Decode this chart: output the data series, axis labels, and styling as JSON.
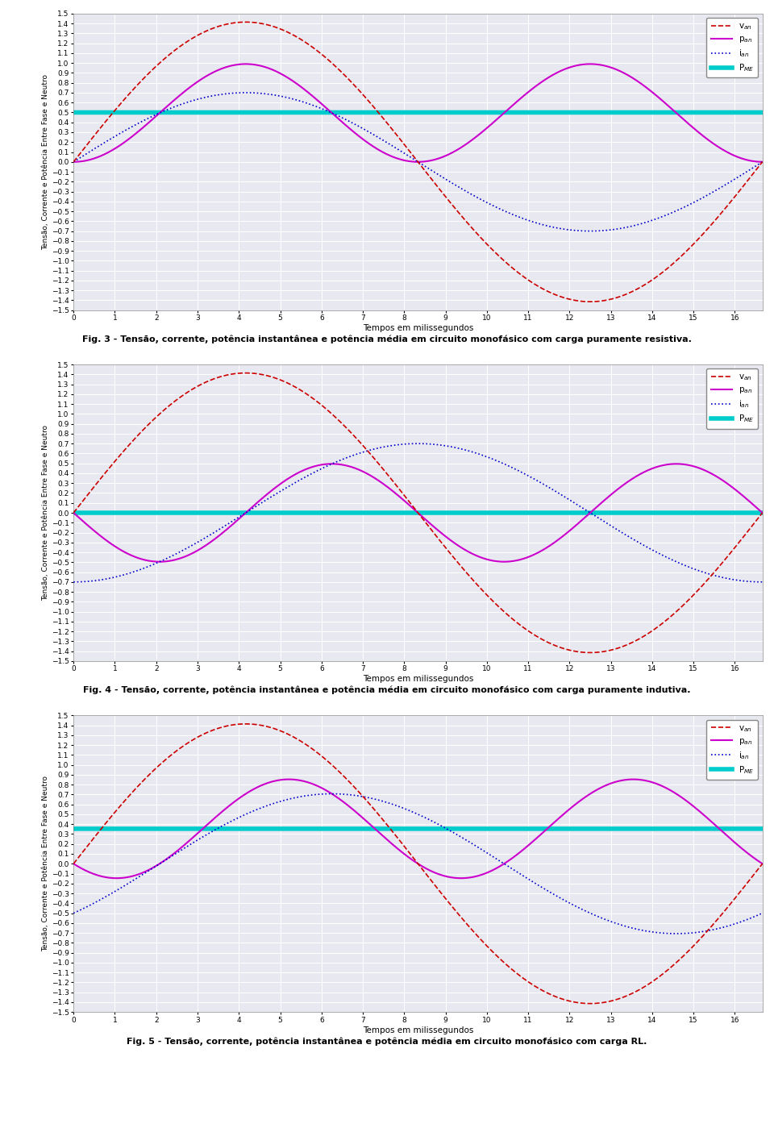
{
  "fig_width": 9.6,
  "fig_height": 14.04,
  "dpi": 100,
  "background_color": "#ffffff",
  "plot_bg_color": "#e8e8f0",
  "grid_color": "#ffffff",
  "x_min": 0,
  "x_max": 16.6667,
  "y_min": -1.5,
  "y_max": 1.5,
  "freq": 60,
  "amplitude_v": 1.4142,
  "xlabel": "Tempos em milissegundos",
  "ylabel": "Tensão, Corrente e Potência Entre Fase e Neutro",
  "xticks": [
    0,
    1,
    2,
    3,
    4,
    5,
    6,
    7,
    8,
    9,
    10,
    11,
    12,
    13,
    14,
    15,
    16
  ],
  "yticks": [
    -1.5,
    -1.4,
    -1.3,
    -1.2,
    -1.1,
    -1.0,
    -0.9,
    -0.8,
    -0.7,
    -0.6,
    -0.5,
    -0.4,
    -0.3,
    -0.2,
    -0.1,
    0.0,
    0.1,
    0.2,
    0.3,
    0.4,
    0.5,
    0.6,
    0.7,
    0.8,
    0.9,
    1.0,
    1.1,
    1.2,
    1.3,
    1.4,
    1.5
  ],
  "color_van": "#cc0000",
  "color_pan": "#cc00cc",
  "color_ian": "#0000cc",
  "color_pme": "#00cccc",
  "lw_van": 1.2,
  "lw_pan": 1.5,
  "lw_ian": 1.2,
  "lw_pme": 4.0,
  "caption1": "Fig. 3 - Tensão, corrente, potência instantânea e potência média em circuito monofásico com carga puramente resistiva.",
  "caption2": "Fig. 4 - Tensão, corrente, potência instantânea e potência média em circuito monofásico com carga puramente indutiva.",
  "caption3": "Fig. 5 - Tensão, corrente, potência instantânea e potência média em circuito monofásico com carga RL.",
  "phase_lag1": 0.0,
  "phase_lag2": 1.5707963,
  "phase_lag3": 0.7853982,
  "P_ME1": 0.5,
  "P_ME2": 0.0,
  "P_ME3": 0.35355,
  "amp_ian1": 0.7,
  "amp_ian2": 0.7,
  "amp_ian3": 0.7071
}
